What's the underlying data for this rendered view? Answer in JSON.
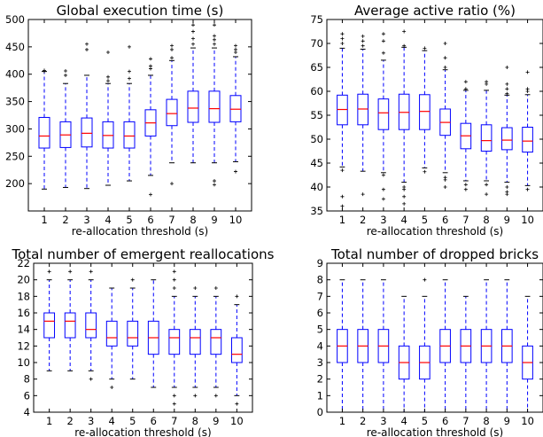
{
  "chart_data": [
    {
      "type": "box",
      "title": "Global execution time (s)",
      "xlabel": "re-allocation threshold (s)",
      "ylabel": "",
      "ylim": [
        150,
        500
      ],
      "yticks": [
        200,
        250,
        300,
        350,
        400,
        450,
        500
      ],
      "categories": [
        "1",
        "2",
        "3",
        "4",
        "5",
        "6",
        "7",
        "8",
        "9",
        "10"
      ],
      "boxes": [
        {
          "q1": 265,
          "median": 287,
          "q3": 321,
          "whislo": 190,
          "whishi": 405,
          "fliers": [
            405,
            407
          ]
        },
        {
          "q1": 266,
          "median": 289,
          "q3": 313,
          "whislo": 193,
          "whishi": 383,
          "fliers": [
            398,
            406
          ]
        },
        {
          "q1": 267,
          "median": 292,
          "q3": 320,
          "whislo": 191,
          "whishi": 398,
          "fliers": [
            445,
            455
          ]
        },
        {
          "q1": 265,
          "median": 288,
          "q3": 313,
          "whislo": 197,
          "whishi": 383,
          "fliers": [
            388,
            395,
            440
          ]
        },
        {
          "q1": 265,
          "median": 287,
          "q3": 313,
          "whislo": 205,
          "whishi": 383,
          "fliers": [
            392,
            405,
            450
          ]
        },
        {
          "q1": 287,
          "median": 311,
          "q3": 335,
          "whislo": 215,
          "whishi": 398,
          "fliers": [
            180,
            410,
            415,
            428
          ]
        },
        {
          "q1": 306,
          "median": 328,
          "q3": 354,
          "whislo": 238,
          "whishi": 425,
          "fliers": [
            200,
            430,
            445,
            452
          ]
        },
        {
          "q1": 312,
          "median": 338,
          "q3": 369,
          "whislo": 238,
          "whishi": 448,
          "fliers": [
            455,
            465,
            478,
            490
          ]
        },
        {
          "q1": 312,
          "median": 337,
          "q3": 369,
          "whislo": 238,
          "whishi": 448,
          "fliers": [
            198,
            205,
            455,
            463,
            470,
            490
          ]
        },
        {
          "q1": 313,
          "median": 336,
          "q3": 361,
          "whislo": 240,
          "whishi": 432,
          "fliers": [
            222,
            440,
            445,
            452
          ]
        }
      ]
    },
    {
      "type": "box",
      "title": "Average active ratio (%)",
      "xlabel": "re-allocation threshold (s)",
      "ylabel": "",
      "ylim": [
        35,
        75
      ],
      "yticks": [
        35,
        40,
        45,
        50,
        55,
        60,
        65,
        70,
        75
      ],
      "categories": [
        "1",
        "2",
        "3",
        "4",
        "5",
        "6",
        "7",
        "8",
        "9",
        "10"
      ],
      "boxes": [
        {
          "q1": 53.0,
          "median": 56.2,
          "q3": 59.2,
          "whislo": 44.2,
          "whishi": 69.0,
          "fliers": [
            36.0,
            38.0,
            43.5,
            70.0,
            71.0,
            72.0
          ]
        },
        {
          "q1": 53.0,
          "median": 56.3,
          "q3": 59.4,
          "whislo": 43.3,
          "whishi": 68.8,
          "fliers": [
            38.5,
            69.5,
            70.5,
            71.5
          ]
        },
        {
          "q1": 52.0,
          "median": 55.5,
          "q3": 58.4,
          "whislo": 43.0,
          "whishi": 66.5,
          "fliers": [
            37.5,
            39.5,
            42.5,
            68.0,
            70.5,
            72.0
          ]
        },
        {
          "q1": 52.0,
          "median": 55.6,
          "q3": 59.4,
          "whislo": 41.0,
          "whishi": 69.2,
          "fliers": [
            36.5,
            38.0,
            39.5,
            40.0,
            69.5,
            72.5
          ]
        },
        {
          "q1": 52.0,
          "median": 55.8,
          "q3": 59.3,
          "whislo": 44.0,
          "whishi": 68.5,
          "fliers": [
            43.2,
            69.0
          ]
        },
        {
          "q1": 50.8,
          "median": 53.5,
          "q3": 56.3,
          "whislo": 43.0,
          "whishi": 64.5,
          "fliers": [
            40.0,
            41.5,
            42.0,
            65.0,
            67.0,
            70.0
          ]
        },
        {
          "q1": 48.0,
          "median": 50.7,
          "q3": 53.3,
          "whislo": 41.3,
          "whishi": 60.2,
          "fliers": [
            39.5,
            40.5,
            60.5,
            62.0
          ]
        },
        {
          "q1": 47.5,
          "median": 49.7,
          "q3": 53.0,
          "whislo": 41.3,
          "whishi": 60.2,
          "fliers": [
            38.5,
            40.5,
            61.5,
            62.0
          ]
        },
        {
          "q1": 47.8,
          "median": 49.8,
          "q3": 52.4,
          "whislo": 41.0,
          "whishi": 59.2,
          "fliers": [
            38.5,
            39.0,
            40.0,
            59.5,
            60.5,
            61.5,
            65.0
          ]
        },
        {
          "q1": 47.3,
          "median": 49.6,
          "q3": 52.5,
          "whislo": 40.3,
          "whishi": 59.3,
          "fliers": [
            39.5,
            60.0,
            60.5,
            64.0
          ]
        }
      ]
    },
    {
      "type": "box",
      "title": "Total number of emergent reallocations",
      "xlabel": "re-allocation threshold (s)",
      "ylabel": "",
      "ylim": [
        4,
        22
      ],
      "yticks": [
        4,
        6,
        8,
        10,
        12,
        14,
        16,
        18,
        20,
        22
      ],
      "categories": [
        "1",
        "2",
        "3",
        "4",
        "5",
        "6",
        "7",
        "8",
        "9",
        "10"
      ],
      "boxes": [
        {
          "q1": 13,
          "median": 15,
          "q3": 16,
          "whislo": 9,
          "whishi": 20,
          "fliers": [
            21
          ]
        },
        {
          "q1": 13,
          "median": 15,
          "q3": 16,
          "whislo": 9,
          "whishi": 20,
          "fliers": [
            21
          ]
        },
        {
          "q1": 13,
          "median": 14,
          "q3": 16,
          "whislo": 9,
          "whishi": 20,
          "fliers": [
            8,
            21
          ]
        },
        {
          "q1": 12,
          "median": 13,
          "q3": 15,
          "whislo": 8,
          "whishi": 19,
          "fliers": [
            7
          ]
        },
        {
          "q1": 12,
          "median": 13,
          "q3": 15,
          "whislo": 8,
          "whishi": 19,
          "fliers": [
            20
          ]
        },
        {
          "q1": 11,
          "median": 13,
          "q3": 15,
          "whislo": 7,
          "whishi": 20,
          "fliers": []
        },
        {
          "q1": 11,
          "median": 13,
          "q3": 14,
          "whislo": 7,
          "whishi": 18,
          "fliers": [
            5,
            6,
            19,
            20,
            21
          ]
        },
        {
          "q1": 11,
          "median": 13,
          "q3": 14,
          "whislo": 7,
          "whishi": 18,
          "fliers": [
            6,
            19
          ]
        },
        {
          "q1": 11,
          "median": 13,
          "q3": 14,
          "whislo": 7,
          "whishi": 18,
          "fliers": [
            6,
            19
          ]
        },
        {
          "q1": 10,
          "median": 11,
          "q3": 13,
          "whislo": 6,
          "whishi": 17,
          "fliers": [
            5,
            18
          ]
        }
      ]
    },
    {
      "type": "box",
      "title": "Total number of dropped bricks",
      "xlabel": "re-allocation threshold (s)",
      "ylabel": "",
      "ylim": [
        0,
        9
      ],
      "yticks": [
        0,
        1,
        2,
        3,
        4,
        5,
        6,
        7,
        8,
        9
      ],
      "categories": [
        "1",
        "2",
        "3",
        "4",
        "5",
        "6",
        "7",
        "8",
        "9",
        "10"
      ],
      "boxes": [
        {
          "q1": 3,
          "median": 4,
          "q3": 5,
          "whislo": 0,
          "whishi": 8,
          "fliers": []
        },
        {
          "q1": 3,
          "median": 4,
          "q3": 5,
          "whislo": 0,
          "whishi": 8,
          "fliers": []
        },
        {
          "q1": 3,
          "median": 4,
          "q3": 5,
          "whislo": 0,
          "whishi": 8,
          "fliers": []
        },
        {
          "q1": 2,
          "median": 3,
          "q3": 4,
          "whislo": 0,
          "whishi": 7,
          "fliers": []
        },
        {
          "q1": 2,
          "median": 3,
          "q3": 4,
          "whislo": 0,
          "whishi": 7,
          "fliers": [
            8
          ]
        },
        {
          "q1": 3,
          "median": 4,
          "q3": 5,
          "whislo": 0,
          "whishi": 8,
          "fliers": []
        },
        {
          "q1": 3,
          "median": 4,
          "q3": 5,
          "whislo": 0,
          "whishi": 7,
          "fliers": []
        },
        {
          "q1": 3,
          "median": 4,
          "q3": 5,
          "whislo": 0,
          "whishi": 8,
          "fliers": []
        },
        {
          "q1": 3,
          "median": 4,
          "q3": 5,
          "whislo": 0,
          "whishi": 8,
          "fliers": []
        },
        {
          "q1": 2,
          "median": 3,
          "q3": 4,
          "whislo": 0,
          "whishi": 7,
          "fliers": []
        }
      ]
    }
  ],
  "colors": {
    "box": "#0000ff",
    "median": "#ff0000",
    "flier": "#000000",
    "axis": "#000000"
  }
}
